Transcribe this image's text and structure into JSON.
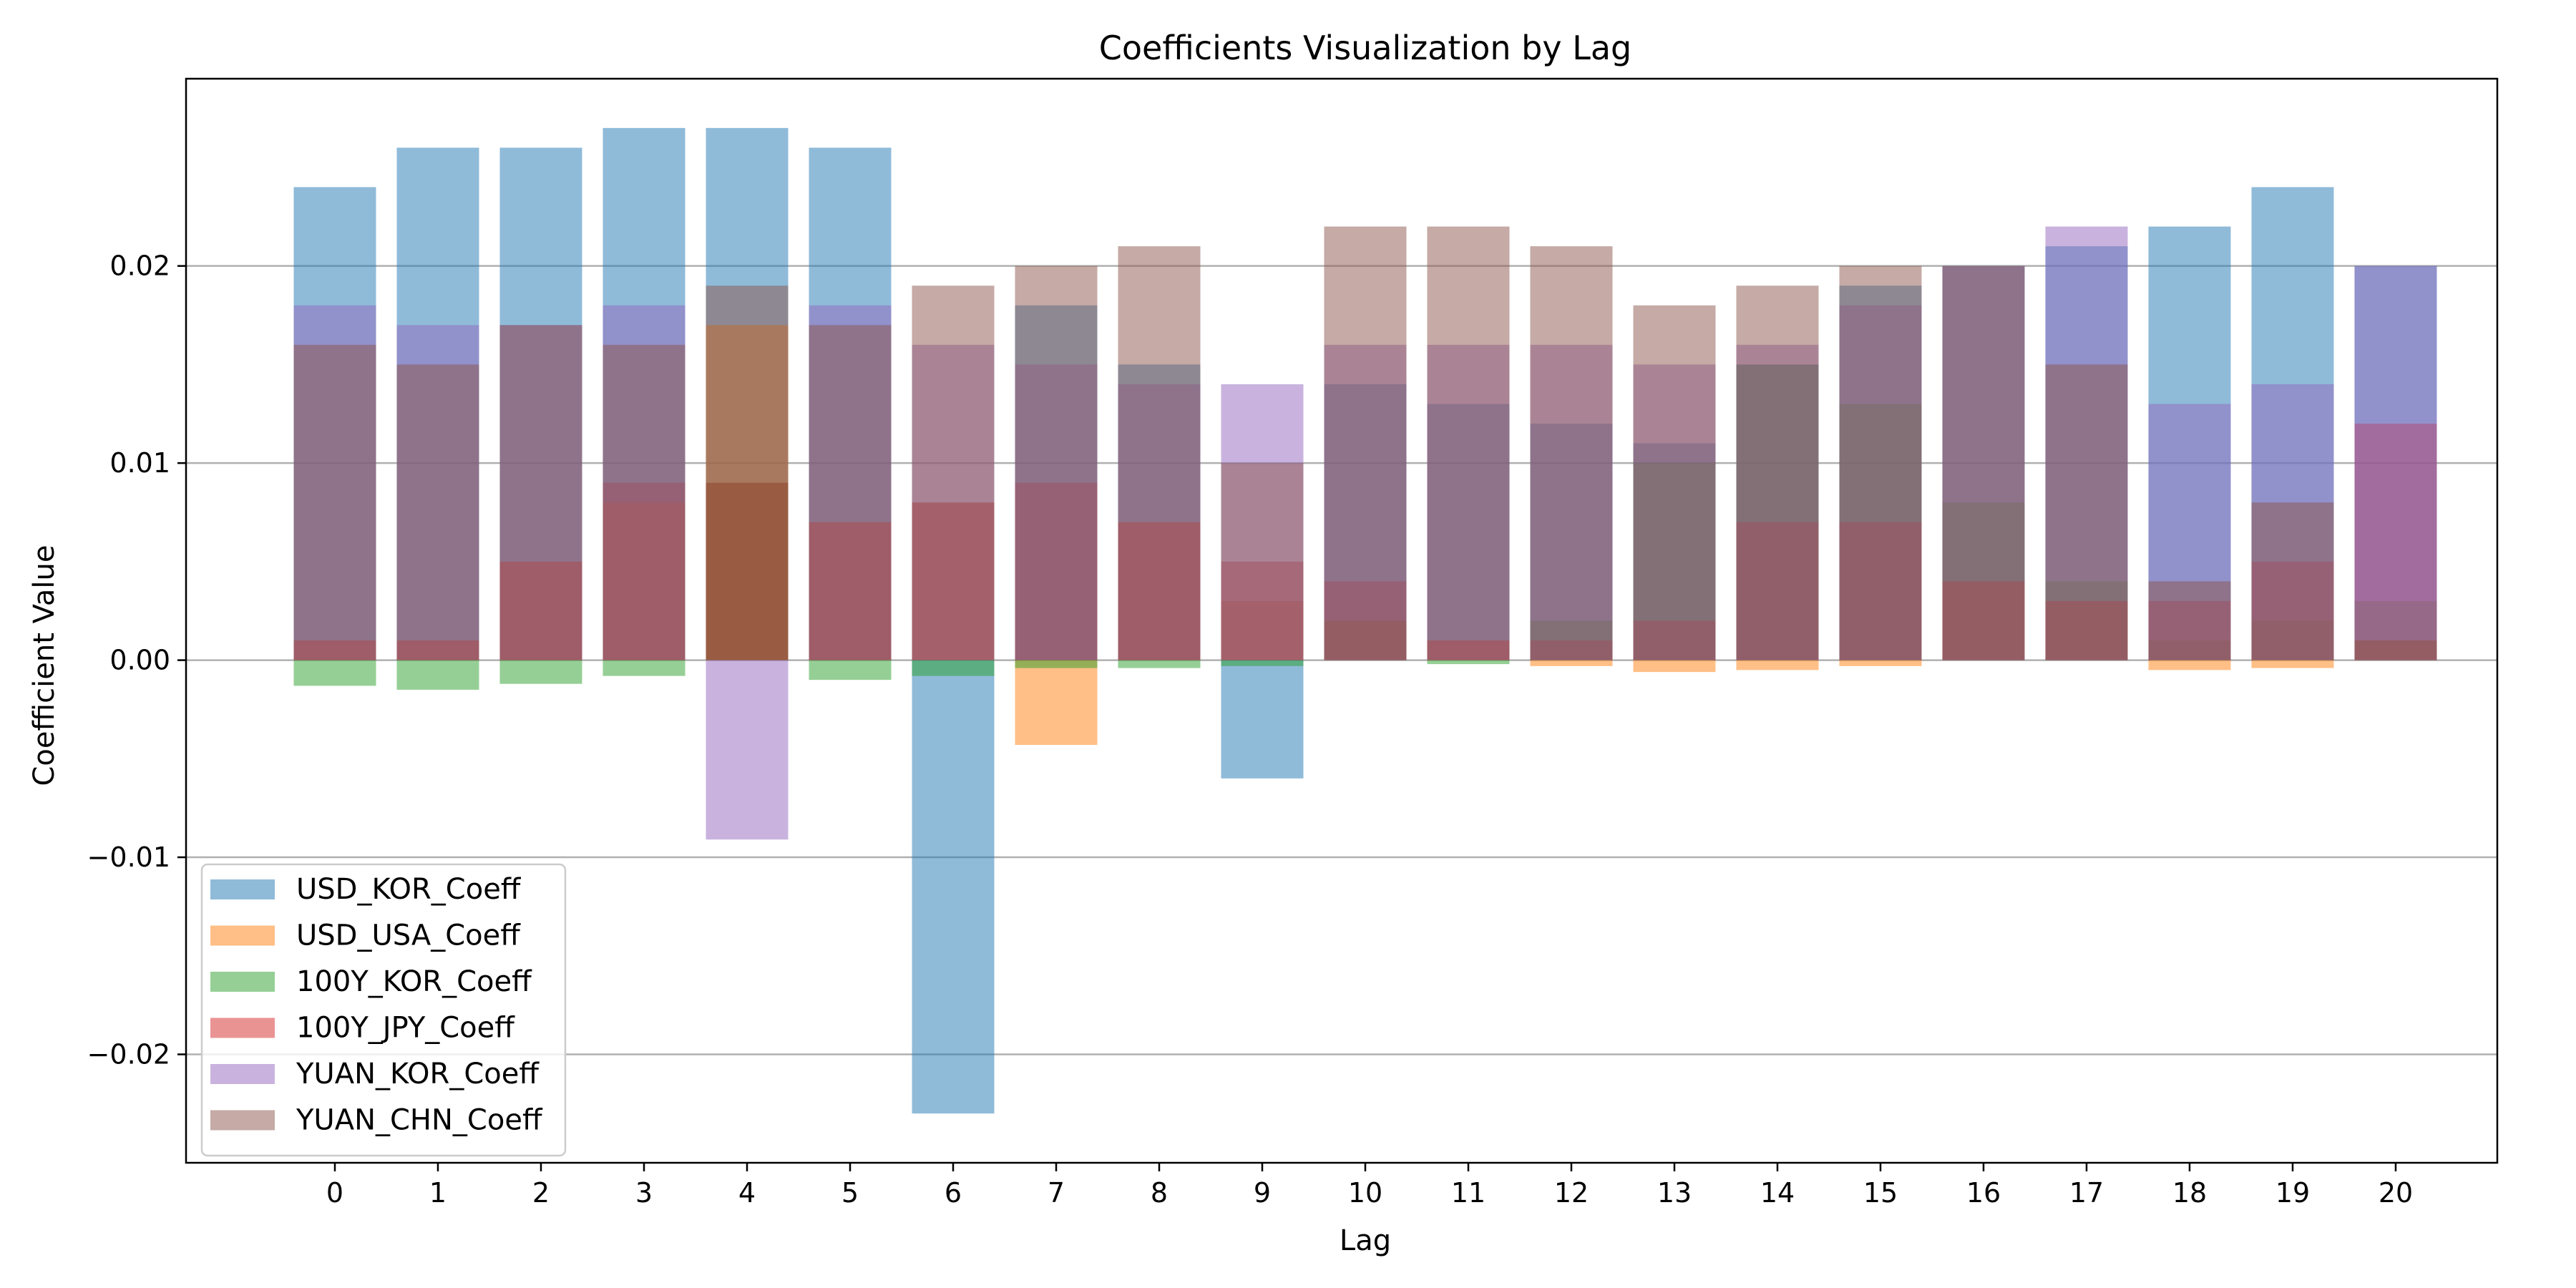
{
  "chart_data": {
    "type": "bar",
    "title": "Coefficients Visualization by Lag",
    "xlabel": "Lag",
    "ylabel": "Coefficient Value",
    "categories": [
      "0",
      "1",
      "2",
      "3",
      "4",
      "5",
      "6",
      "7",
      "8",
      "9",
      "10",
      "11",
      "12",
      "13",
      "14",
      "15",
      "16",
      "17",
      "18",
      "19",
      "20"
    ],
    "ylim": [
      -0.0255,
      0.0295
    ],
    "yticks": [
      -0.02,
      -0.01,
      0.0,
      0.01,
      0.02
    ],
    "ytick_labels": [
      "−0.02",
      "−0.01",
      "0.00",
      "0.01",
      "0.02"
    ],
    "grid": "y",
    "legend_position": "lower-left",
    "bar_opacity": 0.5,
    "series": [
      {
        "name": "USD_KOR_Coeff",
        "color": "#1f77b4",
        "values": [
          0.024,
          0.026,
          0.026,
          0.027,
          0.027,
          0.026,
          -0.023,
          0.018,
          0.015,
          -0.006,
          0.014,
          0.013,
          0.012,
          0.011,
          0.015,
          0.019,
          0.02,
          0.021,
          0.022,
          0.024,
          0.02
        ]
      },
      {
        "name": "USD_USA_Coeff",
        "color": "#ff7f0e",
        "values": [
          0.001,
          0.001,
          0.005,
          0.008,
          0.017,
          0.007,
          0.008,
          -0.0043,
          0.007,
          0.003,
          0.002,
          0.001,
          -0.0003,
          -0.0006,
          -0.0005,
          -0.0003,
          0.004,
          0.003,
          -0.0005,
          -0.0004,
          0.001
        ]
      },
      {
        "name": "100Y_KOR_Coeff",
        "color": "#2ca02c",
        "values": [
          -0.0013,
          -0.0015,
          -0.0012,
          -0.0008,
          0.009,
          -0.001,
          -0.0008,
          -0.0004,
          -0.0004,
          -0.0003,
          0.002,
          -0.0002,
          0.002,
          0.01,
          0.015,
          0.013,
          0.008,
          0.004,
          0.001,
          0.002,
          0.003
        ]
      },
      {
        "name": "100Y_JPY_Coeff",
        "color": "#d62728",
        "values": [
          0.001,
          0.001,
          0.005,
          0.009,
          0.009,
          0.007,
          0.008,
          0.009,
          0.007,
          0.005,
          0.004,
          0.001,
          0.001,
          0.002,
          0.007,
          0.007,
          0.004,
          0.003,
          0.003,
          0.005,
          0.012
        ]
      },
      {
        "name": "YUAN_KOR_Coeff",
        "color": "#9467bd",
        "values": [
          0.018,
          0.017,
          0.017,
          0.018,
          -0.0091,
          0.018,
          0.016,
          0.015,
          0.014,
          0.014,
          0.016,
          0.016,
          0.016,
          0.015,
          0.016,
          0.018,
          0.02,
          0.022,
          0.013,
          0.014,
          0.02
        ]
      },
      {
        "name": "YUAN_CHN_Coeff",
        "color": "#8c564b",
        "values": [
          0.016,
          0.015,
          0.017,
          0.016,
          0.019,
          0.017,
          0.019,
          0.02,
          0.021,
          0.01,
          0.022,
          0.022,
          0.021,
          0.018,
          0.019,
          0.02,
          0.02,
          0.015,
          0.004,
          0.008,
          0.001
        ]
      }
    ]
  }
}
